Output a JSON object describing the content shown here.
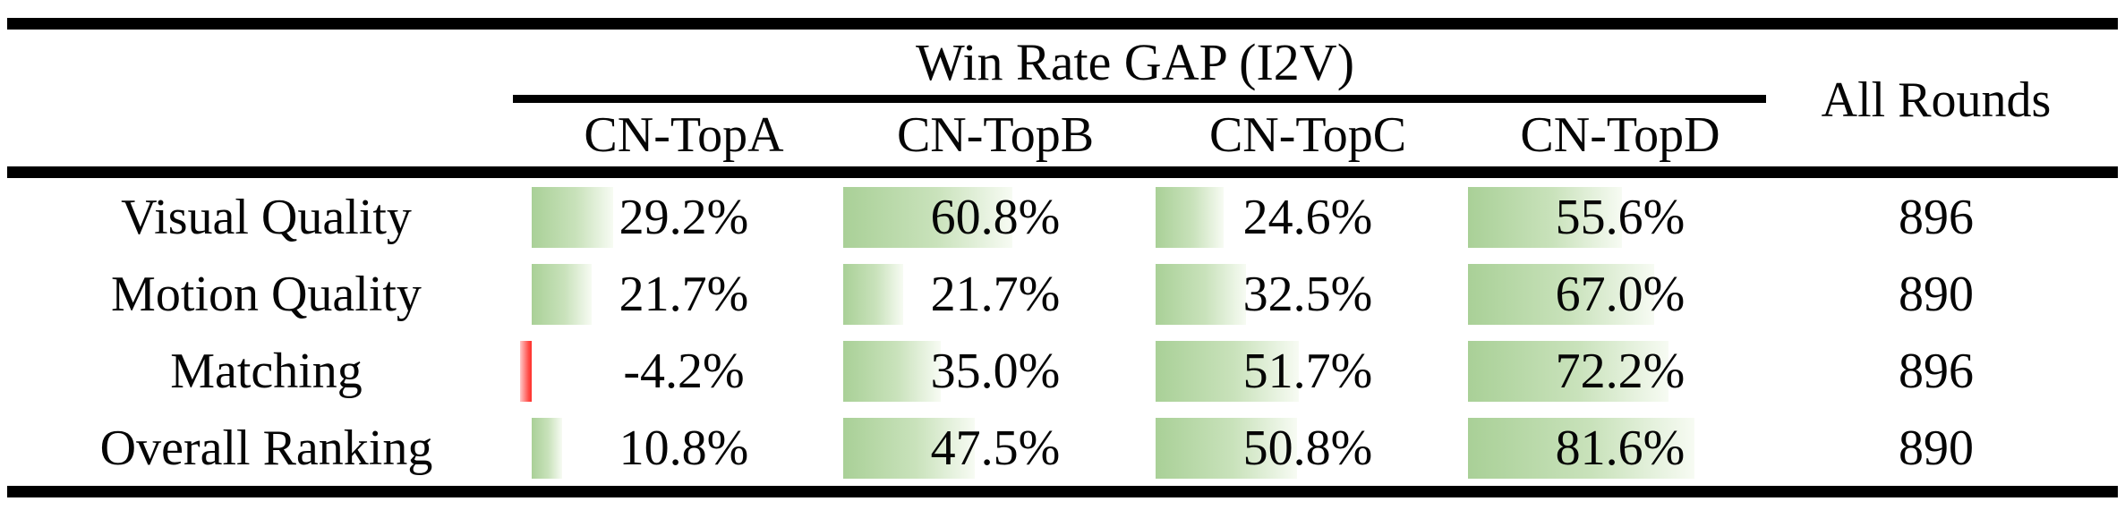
{
  "table": {
    "group_header": "Win Rate GAP (I2V)",
    "all_rounds_header": "All Rounds",
    "columns": [
      "CN-TopA",
      "CN-TopB",
      "CN-TopC",
      "CN-TopD"
    ],
    "rows": [
      {
        "label": "Visual Quality",
        "values": [
          29.2,
          60.8,
          24.6,
          55.6
        ],
        "display": [
          "29.2%",
          "60.8%",
          "24.6%",
          "55.6%"
        ],
        "all_rounds": "896"
      },
      {
        "label": "Motion Quality",
        "values": [
          21.7,
          21.7,
          32.5,
          67.0
        ],
        "display": [
          "21.7%",
          "21.7%",
          "32.5%",
          "67.0%"
        ],
        "all_rounds": "890"
      },
      {
        "label": "Matching",
        "values": [
          -4.2,
          35.0,
          51.7,
          72.2
        ],
        "display": [
          "-4.2%",
          "35.0%",
          "51.7%",
          "72.2%"
        ],
        "all_rounds": "896"
      },
      {
        "label": "Overall Ranking",
        "values": [
          10.8,
          47.5,
          50.8,
          81.6
        ],
        "display": [
          "10.8%",
          "47.5%",
          "50.8%",
          "81.6%"
        ],
        "all_rounds": "890"
      }
    ],
    "colors": {
      "positive_bar": "#a9d097",
      "positive_bar_fade": "#f7fbf3",
      "negative_bar": "#ff302b",
      "rule": "#000000",
      "text": "#050505",
      "background": "#ffffff"
    }
  },
  "chart_data": {
    "type": "table",
    "title": "Win Rate GAP (I2V)",
    "columns": [
      "CN-TopA",
      "CN-TopB",
      "CN-TopC",
      "CN-TopD",
      "All Rounds"
    ],
    "series": [
      {
        "name": "Visual Quality",
        "win_rate_gap_pct": [
          29.2,
          60.8,
          24.6,
          55.6
        ],
        "all_rounds": 896
      },
      {
        "name": "Motion Quality",
        "win_rate_gap_pct": [
          21.7,
          21.7,
          32.5,
          67.0
        ],
        "all_rounds": 890
      },
      {
        "name": "Matching",
        "win_rate_gap_pct": [
          -4.2,
          35.0,
          51.7,
          72.2
        ],
        "all_rounds": 896
      },
      {
        "name": "Overall Ranking",
        "win_rate_gap_pct": [
          10.8,
          47.5,
          50.8,
          81.6
        ],
        "all_rounds": 890
      }
    ],
    "notes": "Cells contain Excel-style in-cell gradient data bars: green for positive values, red for negative values; bar length proportional to value."
  }
}
